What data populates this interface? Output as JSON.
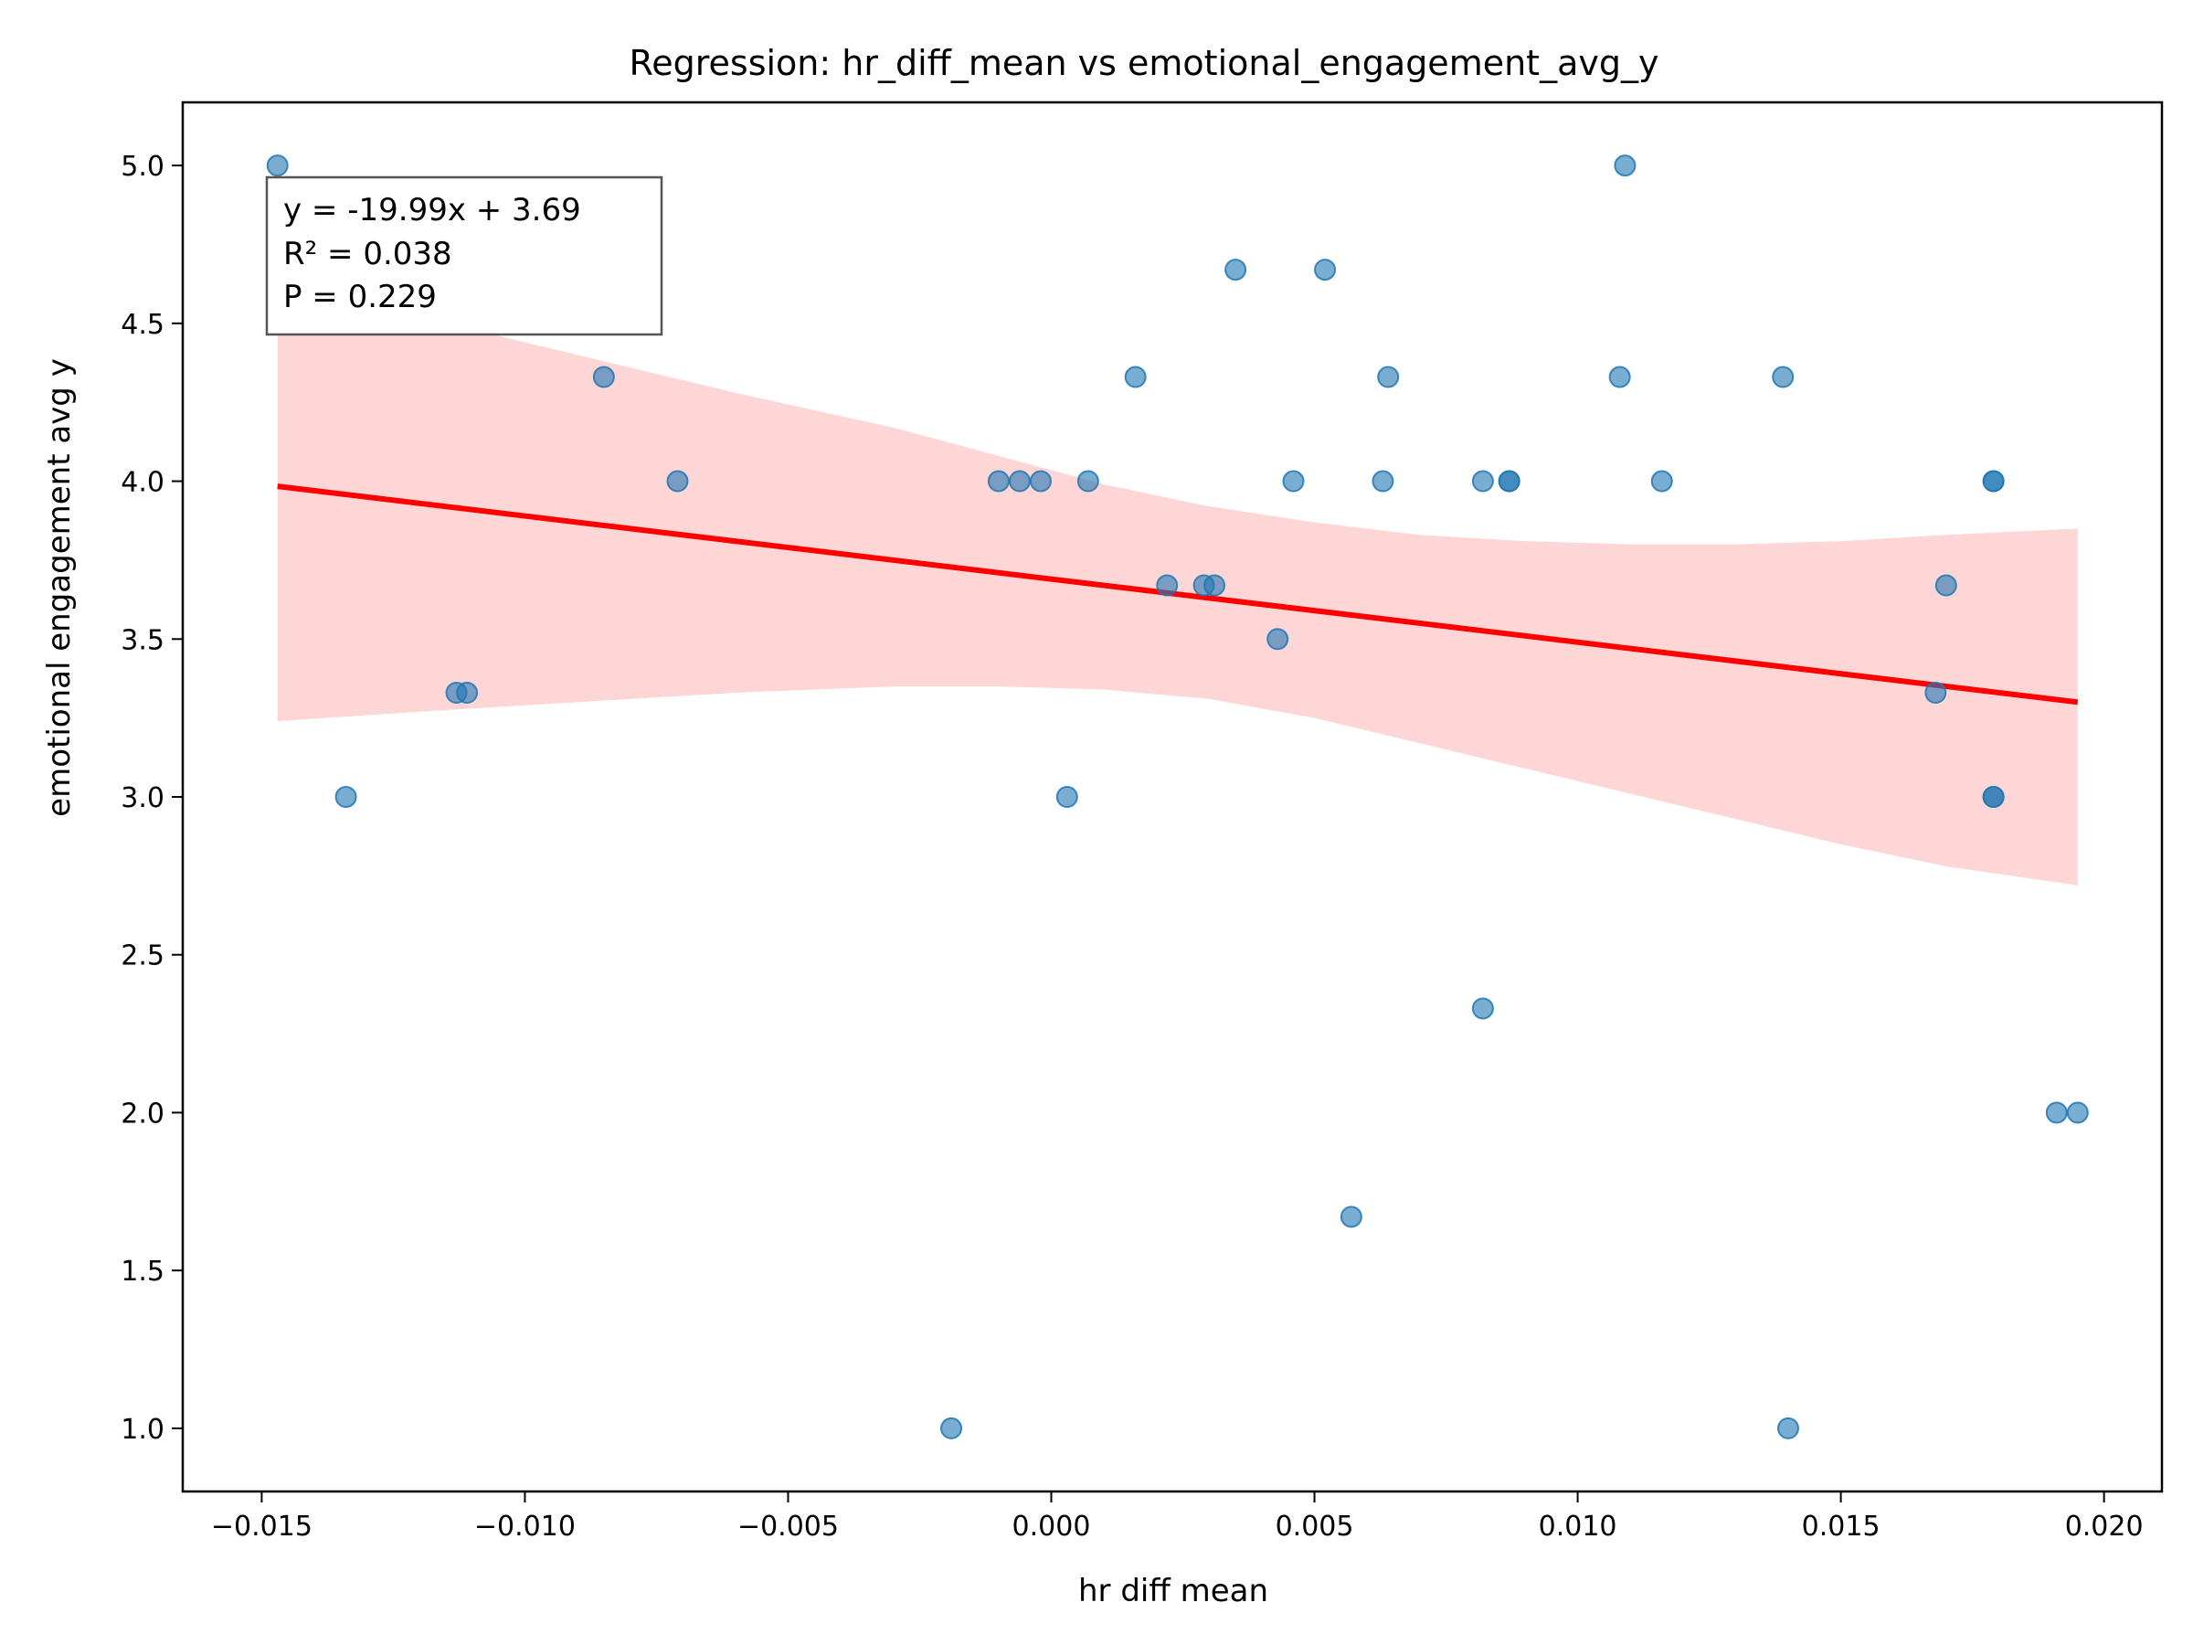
{
  "chart_data": {
    "type": "scatter",
    "title": "Regression: hr_diff_mean vs emotional_engagement_avg_y",
    "xlabel": "hr diff mean",
    "ylabel": "emotional engagement avg y",
    "xlim": [
      -0.0165,
      0.0211
    ],
    "ylim": [
      0.8,
      5.2
    ],
    "x_ticks": [
      -0.015,
      -0.01,
      -0.005,
      0.0,
      0.005,
      0.01,
      0.015,
      0.02
    ],
    "x_tick_labels": [
      "−0.015",
      "−0.010",
      "−0.005",
      "0.000",
      "0.005",
      "0.010",
      "0.015",
      "0.020"
    ],
    "y_ticks": [
      1.0,
      1.5,
      2.0,
      2.5,
      3.0,
      3.5,
      4.0,
      4.5,
      5.0
    ],
    "y_tick_labels": [
      "1.0",
      "1.5",
      "2.0",
      "2.5",
      "3.0",
      "3.5",
      "4.0",
      "4.5",
      "5.0"
    ],
    "grid": false,
    "stats_box": {
      "lines": [
        "y = -19.99x + 3.69",
        "R² = 0.038",
        "P = 0.229"
      ],
      "placement": "top-left"
    },
    "regression": {
      "slope": -19.99,
      "intercept": 3.69,
      "x_range": [
        -0.0147,
        0.0195
      ],
      "color": "#ff0000"
    },
    "confidence_band": {
      "color": "#ffcccc",
      "x": [
        -0.0147,
        -0.012,
        -0.009,
        -0.006,
        -0.003,
        -0.001,
        0.001,
        0.003,
        0.005,
        0.007,
        0.009,
        0.011,
        0.013,
        0.015,
        0.017,
        0.0195
      ],
      "upper": [
        4.62,
        4.52,
        4.4,
        4.28,
        4.17,
        4.08,
        3.99,
        3.92,
        3.87,
        3.83,
        3.81,
        3.8,
        3.8,
        3.81,
        3.83,
        3.85
      ],
      "lower": [
        3.24,
        3.27,
        3.3,
        3.33,
        3.35,
        3.35,
        3.34,
        3.31,
        3.25,
        3.17,
        3.09,
        3.01,
        2.93,
        2.85,
        2.78,
        2.72
      ]
    },
    "point_color": "#1f77b4",
    "series": [
      {
        "x": [
          -0.0147,
          -0.0134,
          -0.0113,
          -0.0111,
          -0.0085,
          -0.0071,
          -0.0019,
          -0.001,
          -0.0006,
          -0.0002,
          0.0003,
          0.0007,
          0.0016,
          0.0022,
          0.0029,
          0.0031,
          0.0035,
          0.0043,
          0.0046,
          0.0052,
          0.0057,
          0.0063,
          0.0064,
          0.0082,
          0.0082,
          0.0087,
          0.0087,
          0.0108,
          0.0109,
          0.0116,
          0.0139,
          0.014,
          0.0168,
          0.017,
          0.0179,
          0.0179,
          0.0179,
          0.0179,
          0.0191,
          0.0195
        ],
        "y": [
          5.0,
          3.0,
          3.33,
          3.33,
          4.33,
          4.0,
          1.0,
          4.0,
          4.0,
          4.0,
          3.0,
          4.0,
          4.33,
          3.67,
          3.67,
          3.67,
          4.67,
          3.5,
          4.0,
          4.67,
          1.67,
          4.0,
          4.33,
          2.33,
          4.0,
          4.0,
          4.0,
          4.33,
          5.0,
          4.0,
          4.33,
          1.0,
          3.33,
          3.67,
          4.0,
          4.0,
          3.0,
          3.0,
          2.0,
          2.0
        ]
      }
    ]
  }
}
